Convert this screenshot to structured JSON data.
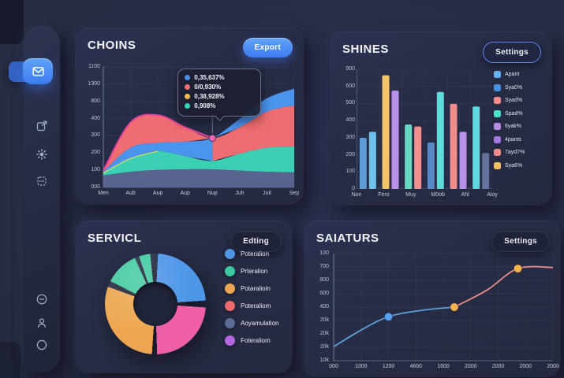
{
  "theme": {
    "accent": "#4a86f0",
    "panel_bg": "#272c44",
    "page_bg": "#262b40",
    "text": "#f2f4fb"
  },
  "sidebar": {
    "items": [
      {
        "icon": "brightness-icon",
        "active": false
      },
      {
        "icon": "inbox-icon",
        "active": true
      },
      {
        "icon": "share-icon",
        "active": false
      },
      {
        "icon": "gear-icon",
        "active": false
      },
      {
        "icon": "grid-icon",
        "active": false
      }
    ],
    "bottom_items": [
      {
        "icon": "minus-circle-icon"
      },
      {
        "icon": "user-icon"
      },
      {
        "icon": "circle-icon"
      }
    ]
  },
  "panels": {
    "choins": {
      "title": "CHOINS",
      "button": "Export"
    },
    "shines": {
      "title": "SHINES",
      "button": "Settings"
    },
    "servicl": {
      "title": "SERVICL",
      "button": "Edting"
    },
    "saiaturs": {
      "title": "SAIATURS",
      "button": "Settings"
    }
  },
  "chart_data": [
    {
      "type": "area",
      "title": "CHOINS",
      "legend_position": "tooltip-overlay",
      "grid": true,
      "x_ticks": [
        "Men",
        "Aub",
        "Aup",
        "Aup",
        "Nup",
        "Juh",
        "Juil",
        "Sep"
      ],
      "y_ticks": [
        "1100",
        "1300",
        "800",
        "400",
        "300",
        "200",
        "100",
        "000"
      ],
      "curves": {
        "blue_top": [
          0.13,
          0.33,
          0.37,
          0.38,
          0.41,
          0.57,
          0.74,
          0.82
        ],
        "red_top": [
          0.14,
          0.54,
          0.6,
          0.5,
          0.41,
          0.5,
          0.63,
          0.68
        ],
        "teal_top": [
          0.12,
          0.24,
          0.3,
          0.26,
          0.22,
          0.28,
          0.33,
          0.34
        ],
        "slate_top": [
          0.1,
          0.13,
          0.145,
          0.15,
          0.15,
          0.14,
          0.13,
          0.125
        ]
      },
      "marker": {
        "x_index": 4,
        "y_frac": 0.41,
        "x_label": "Nup",
        "approx_value": 300,
        "color": "#f665b8"
      },
      "tooltip": {
        "items": [
          {
            "color": "#4a90e8",
            "label": "0,35,637%"
          },
          {
            "color": "#ee6d72",
            "label": "0/0,930%"
          },
          {
            "color": "#f0b84f",
            "label": "0,38,928%"
          },
          {
            "color": "#2ed9b8",
            "label": "0,908%"
          }
        ]
      },
      "colors": {
        "blue": "#4b94ee",
        "red": "#ee6d72",
        "teal": "#3bd0b4",
        "slate": "#56648e",
        "magenta_stroke": "#e8429e",
        "yellow_stroke": "#e6dc55"
      }
    },
    {
      "type": "bar",
      "title": "SHINES",
      "grid": true,
      "ymax": 900,
      "x_ticks": [
        "Non",
        "Fero",
        "Muy",
        "M0ob",
        "Ahl",
        "Aloy"
      ],
      "y_ticks": [
        "900",
        "600",
        "500",
        "400",
        "300",
        "200",
        "100",
        "0"
      ],
      "groups": [
        {
          "label": "Non",
          "bars": [
            {
              "value": 385,
              "color": "#5e9ad6"
            },
            {
              "value": 430,
              "color": "#6ec3ea"
            }
          ]
        },
        {
          "label": "Fero",
          "bars": [
            {
              "value": 855,
              "color": "#f3c568"
            },
            {
              "value": 740,
              "color": "#b892ea"
            }
          ]
        },
        {
          "label": "Muy",
          "bars": [
            {
              "value": 485,
              "color": "#66d9c3"
            },
            {
              "value": 470,
              "color": "#f28f8f"
            }
          ]
        },
        {
          "label": "M0ob",
          "bars": [
            {
              "value": 350,
              "color": "#5589c8"
            },
            {
              "value": 730,
              "color": "#5fd9d9"
            }
          ]
        },
        {
          "label": "Ahl",
          "bars": [
            {
              "value": 640,
              "color": "#f08c8c"
            },
            {
              "value": 430,
              "color": "#b892ea"
            }
          ]
        },
        {
          "label": "Aloy",
          "bars": [
            {
              "value": 620,
              "color": "#5fd9e0"
            },
            {
              "value": 270,
              "color": "#64739c"
            }
          ]
        }
      ],
      "legend": [
        {
          "color": "#6ab0f0",
          "label": "Apant"
        },
        {
          "color": "#4a90e0",
          "label": "Sya0%"
        },
        {
          "color": "#f28b8b",
          "label": "Syad%"
        },
        {
          "color": "#4fe0d0",
          "label": "Spad%"
        },
        {
          "color": "#b78de5",
          "label": "6yak%"
        },
        {
          "color": "#a078e0",
          "label": "4pants"
        },
        {
          "color": "#f28b8b",
          "label": "7ayd7%"
        },
        {
          "color": "#f2c063",
          "label": "Sya6%"
        }
      ]
    },
    {
      "type": "pie",
      "title": "SERVICL",
      "donut": true,
      "segments": [
        {
          "label": "Poteralion",
          "color": "#4d96e8",
          "start_deg": 3,
          "end_deg": 86
        },
        {
          "label": "Poteraliom",
          "color": "#ee5fa8",
          "start_deg": 94,
          "end_deg": 178
        },
        {
          "label": "Potaralioin",
          "color": "#eda64f",
          "start_deg": 184,
          "end_deg": 290
        },
        {
          "label": "Prteralion",
          "color": "#3fc9a0",
          "start_deg": 297,
          "end_deg": 336
        },
        {
          "label": "Prteralion-sliver",
          "color": "#3fc9a0",
          "start_deg": 341,
          "end_deg": 354
        }
      ],
      "legend": [
        {
          "color": "#4d96e8",
          "label": "Poteralion"
        },
        {
          "color": "#3fc9a0",
          "label": "Prteralion"
        },
        {
          "color": "#eda64f",
          "label": "Potaralioin"
        },
        {
          "color": "#ef6b6b",
          "label": "Poteraliom"
        },
        {
          "color": "#5a6b94",
          "label": "Aoyamulation"
        },
        {
          "color": "#b565dd",
          "label": "Foteraliom"
        }
      ]
    },
    {
      "type": "line",
      "title": "SAIATURS",
      "grid": true,
      "x_ticks": [
        "000",
        "1000",
        "1200",
        "4600",
        "1600",
        "2000",
        "2000",
        "2000",
        "2000"
      ],
      "y_ticks": [
        "100",
        "700",
        "800",
        "600",
        "400",
        "20k",
        "20k",
        "20k",
        "10k"
      ],
      "points": [
        {
          "x": 0.0,
          "y": 0.13
        },
        {
          "x": 0.12,
          "y": 0.28
        },
        {
          "x": 0.25,
          "y": 0.41
        },
        {
          "x": 0.4,
          "y": 0.47
        },
        {
          "x": 0.55,
          "y": 0.5
        },
        {
          "x": 0.7,
          "y": 0.66
        },
        {
          "x": 0.84,
          "y": 0.86
        },
        {
          "x": 1.0,
          "y": 0.87
        }
      ],
      "split_index": 4,
      "markers": [
        {
          "point_index": 2,
          "color": "#57a0f0"
        },
        {
          "point_index": 4,
          "color": "#f2b44f"
        },
        {
          "point_index": 6,
          "color": "#f2b44f"
        }
      ],
      "colors": {
        "line1": "#5f9fd8",
        "line2": "#e58b8b"
      }
    }
  ]
}
